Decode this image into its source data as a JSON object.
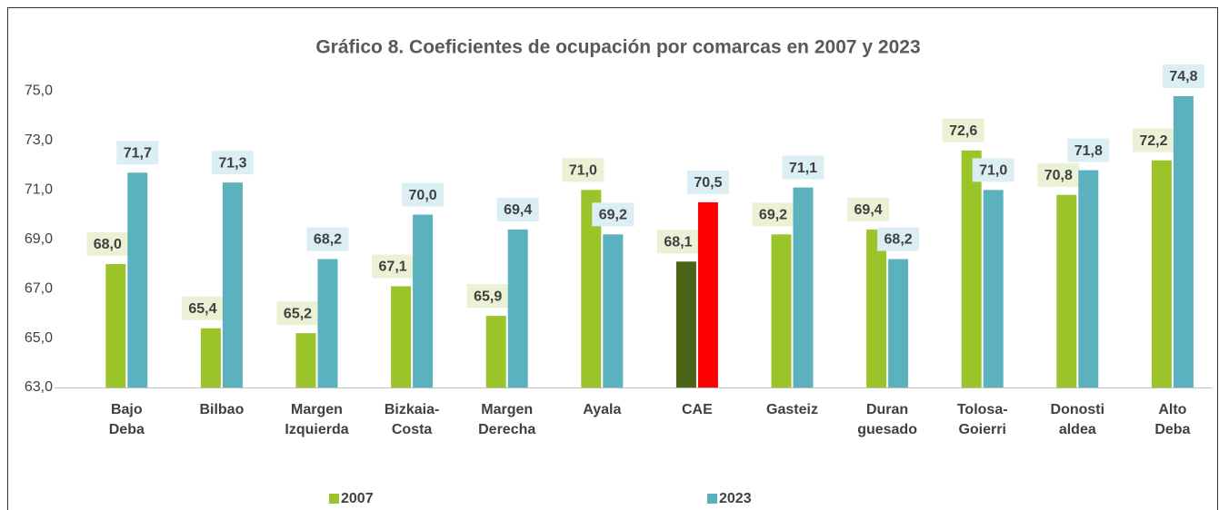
{
  "chart_data": {
    "type": "bar",
    "title": "Gráfico 8. Coeficientes de ocupación por comarcas en 2007 y 2023",
    "categories": [
      [
        "Bajo",
        "Deba"
      ],
      [
        "Bilbao"
      ],
      [
        "Margen",
        "Izquierda"
      ],
      [
        "Bizkaia-",
        "Costa"
      ],
      [
        "Margen",
        "Derecha"
      ],
      [
        "Ayala"
      ],
      [
        "CAE"
      ],
      [
        "Gasteiz"
      ],
      [
        "Duran",
        "guesado"
      ],
      [
        "Tolosa-",
        "Goierri"
      ],
      [
        "Donosti",
        "aldea"
      ],
      [
        "Alto",
        "Deba"
      ]
    ],
    "series": [
      {
        "name": "2007",
        "color": "#9bc42a",
        "label_background": "#ebf1d5",
        "point_colors": {
          "6": "#4a6418"
        },
        "values": [
          68.0,
          65.4,
          65.2,
          67.1,
          65.9,
          71.0,
          68.1,
          69.2,
          69.4,
          72.6,
          70.8,
          72.2
        ],
        "value_labels": [
          "68,0",
          "65,4",
          "65,2",
          "67,1",
          "65,9",
          "71,0",
          "68,1",
          "69,2",
          "69,4",
          "72,6",
          "70,8",
          "72,2"
        ]
      },
      {
        "name": "2023",
        "color": "#5bb1bd",
        "label_background": "#dbeef3",
        "point_colors": {
          "6": "#ff0000"
        },
        "values": [
          71.7,
          71.3,
          68.2,
          70.0,
          69.4,
          69.2,
          70.5,
          71.1,
          68.2,
          71.0,
          71.8,
          74.8
        ],
        "value_labels": [
          "71,7",
          "71,3",
          "68,2",
          "70,0",
          "69,4",
          "69,2",
          "70,5",
          "71,1",
          "68,2",
          "71,0",
          "71,8",
          "74,8"
        ]
      }
    ],
    "ylim": [
      63,
      75.9
    ],
    "yticks": [
      {
        "value": 63,
        "label": "63,0"
      },
      {
        "value": 65,
        "label": "65,0"
      },
      {
        "value": 67,
        "label": "67,0"
      },
      {
        "value": 69,
        "label": "69,0"
      },
      {
        "value": 71,
        "label": "71,0"
      },
      {
        "value": 73,
        "label": "73,0"
      },
      {
        "value": 75,
        "label": "75,0"
      }
    ],
    "grid": false,
    "legend": "bottom"
  }
}
